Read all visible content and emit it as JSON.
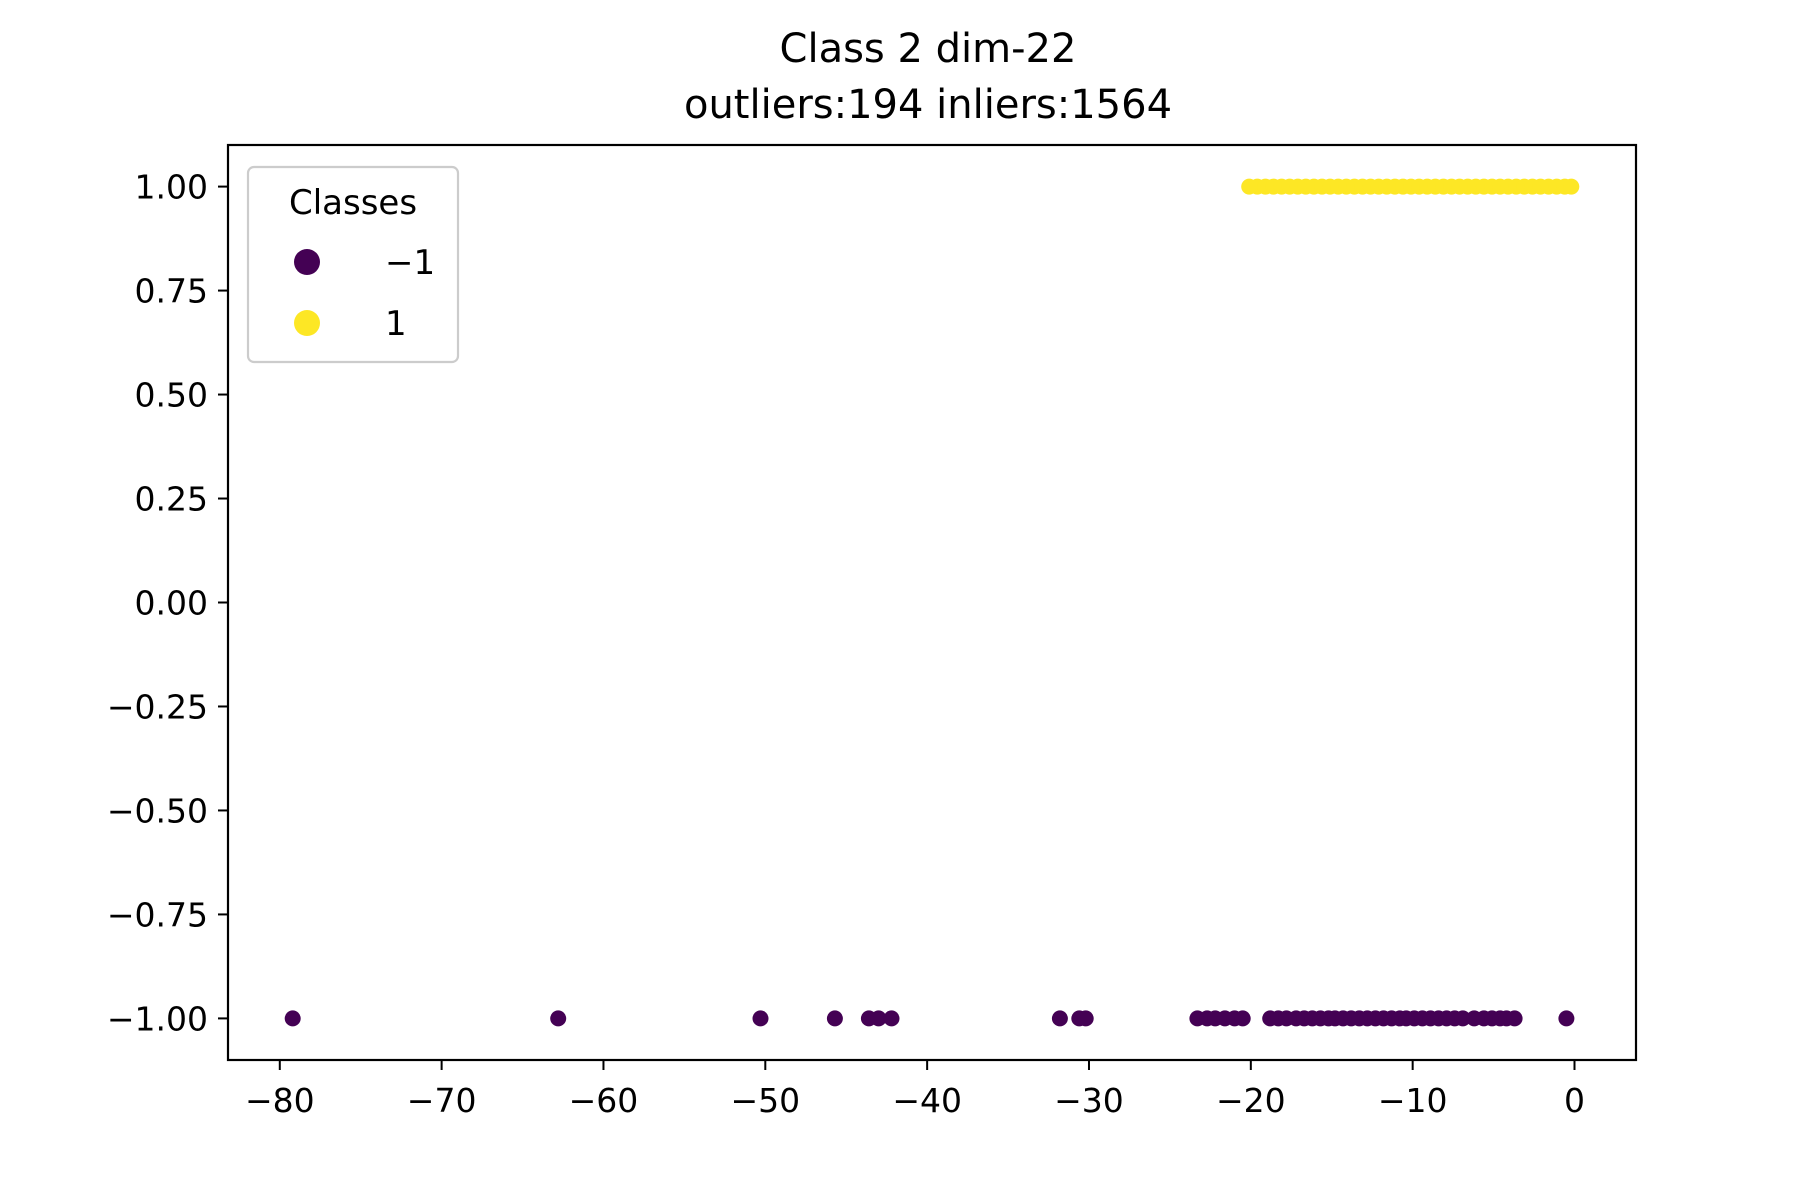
{
  "chart_data": {
    "type": "scatter",
    "title": "Class 2 dim-22",
    "subtitle": "outliers:194  inliers:1564",
    "xlabel": "",
    "ylabel": "",
    "xlim": [
      -83.2,
      3.8
    ],
    "ylim": [
      -1.1,
      1.1
    ],
    "xticks": [
      -80,
      -70,
      -60,
      -50,
      -40,
      -30,
      -20,
      -10,
      0
    ],
    "xtick_labels": [
      "−80",
      "−70",
      "−60",
      "−50",
      "−40",
      "−30",
      "−20",
      "−10",
      "0"
    ],
    "yticks": [
      1.0,
      0.75,
      0.5,
      0.25,
      0.0,
      -0.25,
      -0.5,
      -0.75,
      -1.0
    ],
    "ytick_labels": [
      "1.00",
      "0.75",
      "0.50",
      "0.25",
      "0.00",
      "−0.25",
      "−0.50",
      "−0.75",
      "−1.00"
    ],
    "grid": false,
    "legend": {
      "title": "Classes",
      "position": "top-left",
      "entries": [
        {
          "label": "−1",
          "color": "#440154"
        },
        {
          "label": "1",
          "color": "#fde725"
        }
      ]
    },
    "series": [
      {
        "label": "−1",
        "color": "#440154",
        "y": -1,
        "x": [
          -79.2,
          -62.8,
          -50.3,
          -45.7,
          -43.6,
          -43.0,
          -42.2,
          -31.8,
          -30.6,
          -30.2,
          -23.3,
          -22.7,
          -22.2,
          -21.6,
          -21.0,
          -20.5,
          -18.8,
          -18.3,
          -17.8,
          -17.2,
          -16.7,
          -16.2,
          -15.7,
          -15.2,
          -14.8,
          -14.3,
          -13.8,
          -13.3,
          -12.8,
          -12.3,
          -11.8,
          -11.3,
          -10.8,
          -10.4,
          -9.9,
          -9.4,
          -8.9,
          -8.4,
          -7.9,
          -7.4,
          -6.9,
          -6.2,
          -5.6,
          -5.1,
          -4.6,
          -4.2,
          -3.7,
          -0.5
        ]
      },
      {
        "label": "1",
        "color": "#fde725",
        "y": 1,
        "x": [
          -20.1,
          -19.6,
          -19.1,
          -18.6,
          -18.1,
          -17.6,
          -17.1,
          -16.6,
          -16.1,
          -15.6,
          -15.1,
          -14.6,
          -14.1,
          -13.6,
          -13.1,
          -12.6,
          -12.1,
          -11.6,
          -11.1,
          -10.6,
          -10.1,
          -9.6,
          -9.1,
          -8.6,
          -8.1,
          -7.6,
          -7.1,
          -6.6,
          -6.1,
          -5.6,
          -5.1,
          -4.6,
          -4.1,
          -3.6,
          -3.1,
          -2.6,
          -2.1,
          -1.6,
          -1.1,
          -0.6,
          -0.2
        ]
      }
    ]
  }
}
